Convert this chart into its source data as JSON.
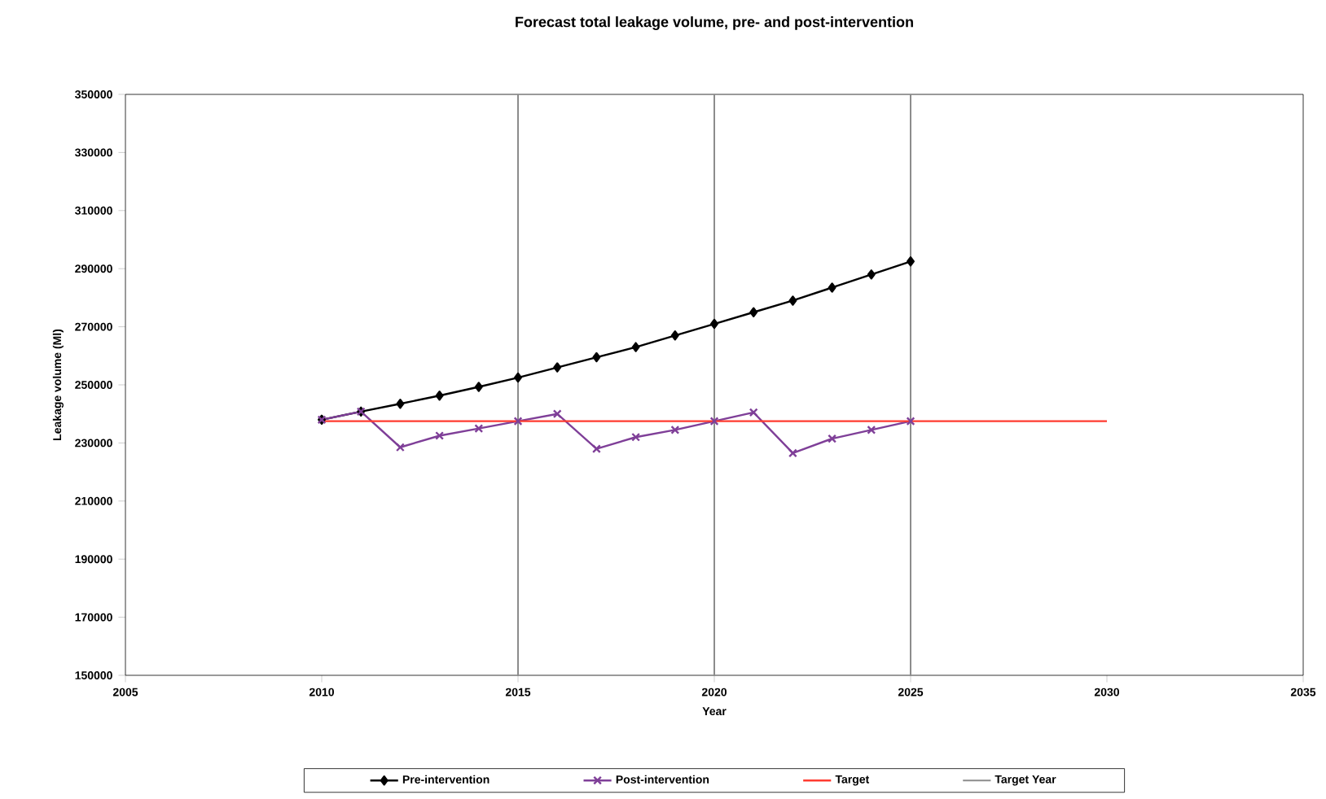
{
  "chart_data": {
    "type": "line",
    "title": "Forecast total leakage volume, pre- and post-intervention",
    "xlabel": "Year",
    "ylabel": "Leakage volume (Ml)",
    "x": [
      2010,
      2011,
      2012,
      2013,
      2014,
      2015,
      2016,
      2017,
      2018,
      2019,
      2020,
      2021,
      2022,
      2023,
      2024,
      2025
    ],
    "series": [
      {
        "name": "Pre-intervention",
        "color": "#000000",
        "marker": "diamond",
        "values": [
          238000,
          240800,
          243500,
          246300,
          249300,
          252500,
          256000,
          259500,
          263000,
          267000,
          271000,
          275000,
          279000,
          283500,
          288000,
          292500
        ]
      },
      {
        "name": "Post-intervention",
        "color": "#7f3f98",
        "marker": "cross",
        "values": [
          238000,
          240800,
          228500,
          232500,
          235000,
          237500,
          240000,
          228000,
          232000,
          234500,
          237500,
          240500,
          226500,
          231500,
          234500,
          237500
        ]
      },
      {
        "name": "Target",
        "color": "#ff3b30",
        "marker": "none",
        "x": [
          2010,
          2030
        ],
        "values": [
          237500,
          237500
        ]
      }
    ],
    "ref_lines": [
      {
        "axis": "x",
        "value": 2015,
        "label": "Target Year",
        "color": "#8c8c8c"
      },
      {
        "axis": "x",
        "value": 2020,
        "color": "#8c8c8c"
      },
      {
        "axis": "x",
        "value": 2025,
        "color": "#8c8c8c"
      }
    ],
    "xlim": [
      2005,
      2035
    ],
    "xticks": [
      2005,
      2010,
      2015,
      2020,
      2025,
      2030,
      2035
    ],
    "ylim": [
      150000,
      350000
    ],
    "yticks": [
      150000,
      170000,
      190000,
      210000,
      230000,
      250000,
      270000,
      290000,
      310000,
      330000,
      350000
    ],
    "grid": false,
    "legend": "bottom",
    "line_style": "solid"
  }
}
